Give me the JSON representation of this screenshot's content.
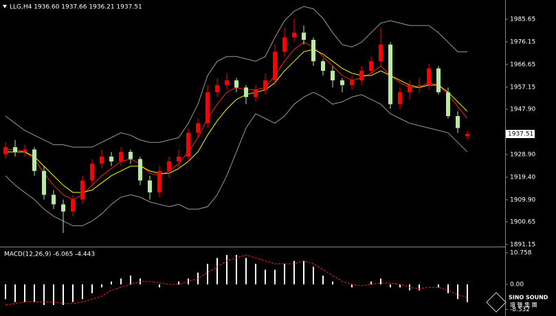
{
  "chart_data": [
    {
      "type": "candlestick",
      "title": "LLG,H4 1936.60 1937.66 1936.21 1937.51",
      "open": [
        1929,
        1932,
        1930,
        1931,
        1922,
        1912,
        1908,
        1905,
        1910,
        1918,
        1925,
        1928,
        1926,
        1930,
        1927,
        1918,
        1913,
        1922,
        1926,
        1928,
        1938,
        1942,
        1955,
        1958,
        1960,
        1957,
        1953,
        1956,
        1960,
        1972,
        1978,
        1980,
        1977,
        1968,
        1964,
        1960,
        1958,
        1960,
        1964,
        1968,
        1975,
        1950,
        1955,
        1958,
        1958,
        1965,
        1955,
        1945,
        1936.6
      ],
      "high": [
        1934,
        1935,
        1933,
        1932,
        1924,
        1914,
        1910,
        1912,
        1920,
        1927,
        1931,
        1930,
        1932,
        1931,
        1928,
        1920,
        1924,
        1928,
        1931,
        1940,
        1944,
        1958,
        1961,
        1963,
        1961,
        1958,
        1958,
        1963,
        1975,
        1982,
        1986,
        1983,
        1978,
        1969,
        1966,
        1961,
        1962,
        1966,
        1970,
        1982,
        1976,
        1957,
        1960,
        1961,
        1967,
        1966,
        1957,
        1947,
        1939
      ],
      "low": [
        1927,
        1928,
        1928,
        1920,
        1910,
        1906,
        1896,
        1903,
        1908,
        1916,
        1923,
        1924,
        1924,
        1925,
        1916,
        1910,
        1911,
        1919,
        1923,
        1926,
        1936,
        1940,
        1953,
        1956,
        1955,
        1950,
        1951,
        1954,
        1958,
        1970,
        1976,
        1975,
        1966,
        1962,
        1957,
        1955,
        1956,
        1958,
        1962,
        1966,
        1948,
        1948,
        1952,
        1955,
        1956,
        1954,
        1944,
        1938,
        1935
      ],
      "close": [
        1932,
        1930,
        1931,
        1922,
        1912,
        1908,
        1905,
        1910,
        1918,
        1925,
        1928,
        1926,
        1930,
        1927,
        1918,
        1913,
        1922,
        1926,
        1928,
        1938,
        1942,
        1955,
        1958,
        1960,
        1957,
        1953,
        1956,
        1960,
        1972,
        1978,
        1980,
        1977,
        1968,
        1964,
        1960,
        1958,
        1960,
        1964,
        1968,
        1975,
        1950,
        1955,
        1958,
        1958,
        1965,
        1955,
        1945,
        1940,
        1937.51
      ],
      "up_color": "#ff0000",
      "down_color": "#b8eba0",
      "series": [
        {
          "color": "#9a9a9a",
          "values": [
            1945,
            1942,
            1939,
            1937,
            1935,
            1933,
            1933,
            1932,
            1932,
            1932,
            1934,
            1936,
            1938,
            1937,
            1935,
            1934,
            1934,
            1935,
            1936,
            1942,
            1950,
            1962,
            1968,
            1970,
            1970,
            1969,
            1968,
            1970,
            1978,
            1985,
            1989,
            1991,
            1990,
            1986,
            1980,
            1975,
            1974,
            1976,
            1980,
            1984,
            1985,
            1984,
            1983,
            1983,
            1983,
            1980,
            1976,
            1972,
            1972
          ]
        },
        {
          "color": "#9a9a9a",
          "values": [
            1920,
            1916,
            1913,
            1910,
            1906,
            1903,
            1901,
            1899,
            1899,
            1901,
            1904,
            1908,
            1911,
            1912,
            1911,
            1909,
            1908,
            1907,
            1908,
            1906,
            1906,
            1907,
            1912,
            1920,
            1930,
            1940,
            1946,
            1944,
            1942,
            1945,
            1950,
            1953,
            1955,
            1953,
            1950,
            1951,
            1953,
            1954,
            1952,
            1950,
            1946,
            1944,
            1942,
            1941,
            1940,
            1939,
            1938,
            1934,
            1930
          ]
        },
        {
          "color": "#ff2020",
          "values": [
            1931,
            1931,
            1930,
            1927,
            1921,
            1916,
            1912,
            1910,
            1912,
            1916,
            1920,
            1923,
            1926,
            1927,
            1925,
            1921,
            1920,
            1922,
            1925,
            1930,
            1936,
            1944,
            1950,
            1955,
            1957,
            1956,
            1956,
            1957,
            1962,
            1968,
            1973,
            1976,
            1974,
            1970,
            1966,
            1962,
            1960,
            1961,
            1963,
            1966,
            1962,
            1959,
            1957,
            1957,
            1959,
            1958,
            1954,
            1949,
            1944
          ]
        },
        {
          "color": "#ffff00",
          "values": [
            1930,
            1930,
            1930,
            1928,
            1924,
            1920,
            1916,
            1913,
            1913,
            1914,
            1917,
            1920,
            1922,
            1924,
            1924,
            1922,
            1921,
            1921,
            1923,
            1926,
            1930,
            1937,
            1943,
            1948,
            1952,
            1954,
            1955,
            1956,
            1959,
            1964,
            1968,
            1972,
            1973,
            1971,
            1968,
            1965,
            1963,
            1962,
            1962,
            1964,
            1962,
            1960,
            1958,
            1957,
            1958,
            1958,
            1955,
            1951,
            1947
          ]
        }
      ],
      "ylim": [
        1890.55,
        1993.7
      ],
      "yticks": [
        1985.65,
        1976.15,
        1966.65,
        1957.15,
        {
          "value": 1947.9,
          "label": "1947.90"
        },
        {
          "value": 1928.9,
          "label": "1928.90"
        },
        {
          "value": 1919.4,
          "label": "1919.40"
        },
        {
          "value": 1909.9,
          "label": "1909.90"
        },
        1900.65,
        1891.15
      ]
    },
    {
      "type": "macd",
      "title": "MACD(12,26,9) -6.065 -4.443",
      "histogram": {
        "color": "#ffffff",
        "values": [
          -5,
          -6,
          -6,
          -6,
          -7,
          -7,
          -7,
          -6,
          -5,
          -3,
          -1,
          1,
          2,
          3,
          2,
          0,
          -1,
          0,
          1,
          2,
          4,
          7,
          9,
          10,
          10,
          9,
          7,
          5,
          5,
          7,
          8,
          8,
          6,
          3,
          1,
          0,
          -1,
          0,
          1,
          2,
          -1,
          -1,
          -2,
          -2,
          0,
          -1,
          -3,
          -5,
          -6.065
        ]
      },
      "signal": {
        "color": "#ff2020",
        "values": [
          -7,
          -6.5,
          -6,
          -6,
          -6,
          -6,
          -6.5,
          -6.5,
          -6,
          -5,
          -4,
          -2,
          -1,
          0,
          1,
          1,
          0.5,
          0,
          0,
          1,
          2,
          4,
          6,
          8,
          9,
          10,
          9,
          8,
          7,
          7,
          7,
          8,
          7,
          5,
          3,
          1,
          0,
          -0.5,
          0,
          0.5,
          0.5,
          0,
          -1,
          -1.5,
          -1,
          -1,
          -2,
          -3.5,
          -4.443
        ]
      },
      "ylim": [
        -10.28,
        12.15
      ],
      "yticks": [
        10.758,
        {
          "value": 0,
          "label": "0.00"
        },
        -8.532
      ]
    }
  ],
  "logo": {
    "name": "SINO SOUND",
    "sub": "環 聲 集 團"
  }
}
